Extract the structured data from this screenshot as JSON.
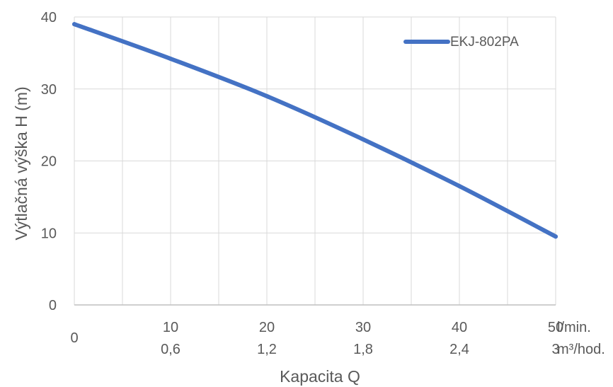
{
  "chart_data": {
    "type": "line",
    "title": "",
    "xlabel": "Kapacita Q",
    "ylabel": "Výtlačná výška H (m)",
    "xlim": [
      0,
      50
    ],
    "ylim": [
      0,
      40
    ],
    "grid": "both",
    "legend_position": "top-right",
    "x_ticks": [
      0,
      10,
      20,
      30,
      40,
      50
    ],
    "x_tick_labels": [
      "0",
      "10",
      "20",
      "30",
      "40",
      "50"
    ],
    "x_secondary_tick_labels": [
      "",
      "0,6",
      "1,2",
      "1,8",
      "2,4",
      "3"
    ],
    "x_unit_primary": "l/min.",
    "x_unit_secondary": "m³/hod.",
    "y_ticks": [
      0,
      10,
      20,
      30,
      40
    ],
    "y_tick_labels": [
      "0",
      "10",
      "20",
      "30",
      "40"
    ],
    "series": [
      {
        "name": "EKJ-802PA",
        "color": "#4472c4",
        "x": [
          0,
          10,
          20,
          30,
          40,
          50
        ],
        "y": [
          39,
          34.2,
          29,
          23,
          16.5,
          9.5
        ]
      }
    ]
  }
}
